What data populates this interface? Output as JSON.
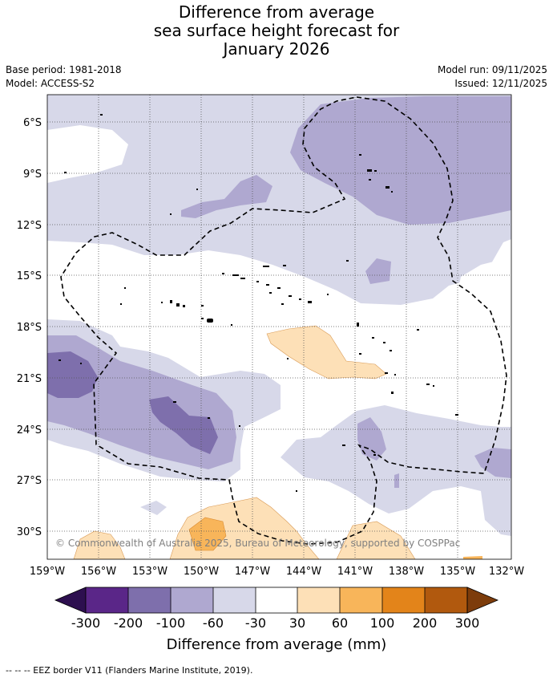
{
  "title": {
    "line1": "Difference from average",
    "line2": "sea surface height forecast for",
    "line3": "January 2026"
  },
  "meta": {
    "base_period": "Base period: 1981-2018",
    "model": "Model: ACCESS-S2",
    "model_run": "Model run: 09/11/2025",
    "issued": "Issued: 12/11/2025"
  },
  "map": {
    "lat_labels": [
      "6°S",
      "9°S",
      "12°S",
      "15°S",
      "18°S",
      "21°S",
      "24°S",
      "27°S",
      "30°S"
    ],
    "lon_labels": [
      "159°W",
      "156°W",
      "153°W",
      "150°W",
      "147°W",
      "144°W",
      "141°W",
      "138°W",
      "135°W",
      "132°W"
    ],
    "copyright": "© Commonwealth of Australia 2025, Bureau of Meteorology, supported by COSPPac"
  },
  "colorbar": {
    "title": "Difference from average (mm)",
    "tick_labels": [
      "-300",
      "-200",
      "-100",
      "-60",
      "-30",
      "30",
      "60",
      "100",
      "200",
      "300"
    ],
    "colors": {
      "below": "#2d0f4f",
      "c1": "#5a2688",
      "c2": "#7e6fac",
      "c3": "#afa8d0",
      "c4": "#d7d8e9",
      "c5": "#ffffff",
      "c6": "#fde0b7",
      "c7": "#f8b55a",
      "c8": "#e3841a",
      "c9": "#b1590e",
      "above": "#7d3c0b"
    }
  },
  "footer": {
    "eez_legend": "-- -- -- EEZ border V11 (Flanders Marine Institute, 2019)."
  }
}
